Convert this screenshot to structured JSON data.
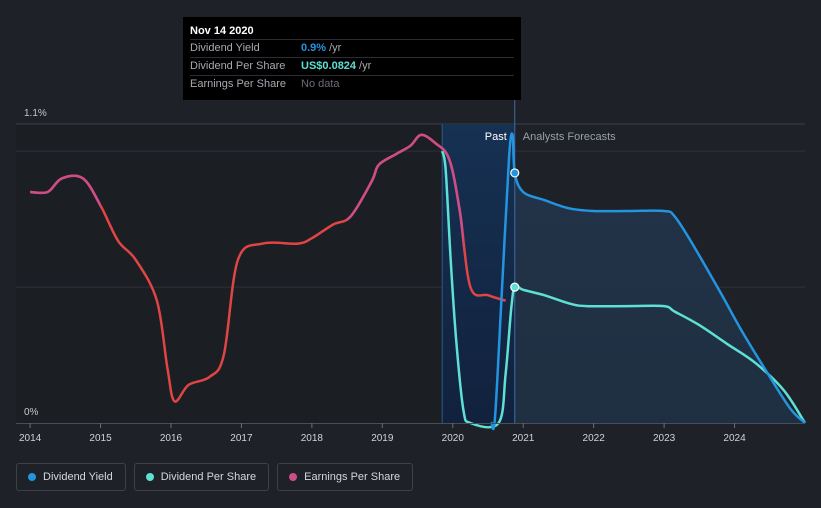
{
  "tooltip": {
    "date": "Nov 14 2020",
    "rows": [
      {
        "label": "Dividend Yield",
        "value": "0.9%",
        "unit": "/yr",
        "color": "#2394df"
      },
      {
        "label": "Dividend Per Share",
        "value": "US$0.0824",
        "unit": "/yr",
        "color": "#5ee0d3"
      },
      {
        "label": "Earnings Per Share",
        "value": "No data",
        "unit": "",
        "color": "#6b6f76"
      }
    ]
  },
  "labels": {
    "past": "Past",
    "forecast": "Analysts Forecasts"
  },
  "legend": [
    {
      "label": "Dividend Yield",
      "color": "#2394df"
    },
    {
      "label": "Dividend Per Share",
      "color": "#5ee0d3"
    },
    {
      "label": "Earnings Per Share",
      "color": "#cc4e87"
    }
  ],
  "chart_data": {
    "type": "line",
    "title": "",
    "xlabel": "",
    "ylabel": "",
    "xlim": [
      2013.8,
      2025.0
    ],
    "ylim": [
      0,
      1.1
    ],
    "y_tick_labels": [
      {
        "value": 1.1,
        "label": "1.1%"
      },
      {
        "value": 0,
        "label": "0%"
      }
    ],
    "x_ticks": [
      2014,
      2015,
      2016,
      2017,
      2018,
      2019,
      2020,
      2021,
      2022,
      2023,
      2024
    ],
    "gridlines": [
      1.0,
      0.5
    ],
    "highlight_range": [
      2019.85,
      2020.88
    ],
    "past_end": 2020.88,
    "tooltip_x": 2020.88,
    "series": [
      {
        "name": "Earnings Per Share",
        "color": "#e04545",
        "points": [
          [
            2014.0,
            0.85
          ],
          [
            2014.25,
            0.85
          ],
          [
            2014.45,
            0.9
          ],
          [
            2014.75,
            0.9
          ],
          [
            2015.0,
            0.8
          ],
          [
            2015.25,
            0.67
          ],
          [
            2015.5,
            0.6
          ],
          [
            2015.8,
            0.45
          ],
          [
            2015.95,
            0.2
          ],
          [
            2016.05,
            0.08
          ],
          [
            2016.25,
            0.14
          ],
          [
            2016.55,
            0.17
          ],
          [
            2016.75,
            0.25
          ],
          [
            2016.95,
            0.6
          ],
          [
            2017.3,
            0.66
          ],
          [
            2017.8,
            0.66
          ],
          [
            2018.0,
            0.68
          ],
          [
            2018.3,
            0.73
          ],
          [
            2018.55,
            0.76
          ],
          [
            2018.85,
            0.89
          ],
          [
            2018.95,
            0.95
          ],
          [
            2019.2,
            0.99
          ],
          [
            2019.4,
            1.02
          ],
          [
            2019.55,
            1.06
          ],
          [
            2019.75,
            1.03
          ],
          [
            2019.95,
            0.97
          ],
          [
            2020.1,
            0.78
          ],
          [
            2020.25,
            0.5
          ],
          [
            2020.5,
            0.47
          ],
          [
            2020.75,
            0.45
          ]
        ],
        "magenta_ranges": [
          [
            2014.0,
            2015.0
          ],
          [
            2018.5,
            2020.15
          ]
        ]
      },
      {
        "name": "Dividend Yield",
        "color": "#2394df",
        "points": [
          [
            2020.55,
            0.0
          ],
          [
            2020.6,
            0.02
          ],
          [
            2020.7,
            0.5
          ],
          [
            2020.8,
            0.98
          ],
          [
            2020.85,
            1.06
          ],
          [
            2020.88,
            0.92
          ],
          [
            2021.0,
            0.85
          ],
          [
            2021.3,
            0.82
          ],
          [
            2021.65,
            0.79
          ],
          [
            2022.0,
            0.78
          ],
          [
            2022.5,
            0.78
          ],
          [
            2023.0,
            0.78
          ],
          [
            2023.15,
            0.76
          ],
          [
            2023.4,
            0.66
          ],
          [
            2023.8,
            0.48
          ],
          [
            2024.1,
            0.34
          ],
          [
            2024.5,
            0.17
          ],
          [
            2024.8,
            0.05
          ],
          [
            2025.0,
            0.0
          ]
        ]
      },
      {
        "name": "Dividend Per Share",
        "color": "#5ee0d3",
        "points": [
          [
            2019.85,
            1.0
          ],
          [
            2019.9,
            0.93
          ],
          [
            2019.97,
            0.6
          ],
          [
            2020.05,
            0.3
          ],
          [
            2020.15,
            0.05
          ],
          [
            2020.25,
            0.0
          ],
          [
            2020.65,
            0.0
          ],
          [
            2020.75,
            0.18
          ],
          [
            2020.83,
            0.42
          ],
          [
            2020.88,
            0.5
          ],
          [
            2021.0,
            0.49
          ],
          [
            2021.3,
            0.47
          ],
          [
            2021.65,
            0.44
          ],
          [
            2021.9,
            0.43
          ],
          [
            2022.5,
            0.43
          ],
          [
            2023.0,
            0.43
          ],
          [
            2023.15,
            0.41
          ],
          [
            2023.5,
            0.36
          ],
          [
            2023.9,
            0.29
          ],
          [
            2024.3,
            0.22
          ],
          [
            2024.7,
            0.12
          ],
          [
            2025.0,
            0.0
          ]
        ]
      }
    ]
  }
}
